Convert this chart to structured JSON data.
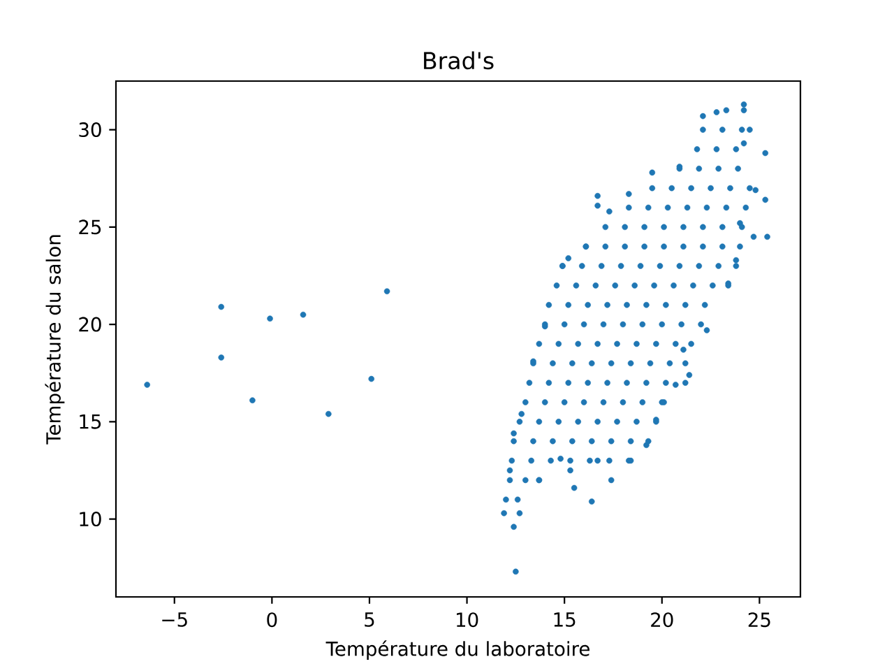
{
  "chart_data": {
    "type": "scatter",
    "title": "Brad's",
    "xlabel": "Température du laboratoire",
    "ylabel": "Température du salon",
    "color": "#1f77b4",
    "marker": "circle",
    "xlim": [
      -8.0,
      27.1
    ],
    "ylim": [
      6.0,
      32.5
    ],
    "xticks": [
      {
        "value": -5,
        "label": "−5"
      },
      0,
      5,
      10,
      15,
      20,
      25
    ],
    "yticks": [
      10,
      15,
      20,
      25,
      30
    ],
    "x": [
      -6.4,
      -2.6,
      -2.6,
      -1.0,
      -0.1,
      1.6,
      2.9,
      5.1,
      5.9,
      12.5,
      12.4,
      11.9,
      12.2,
      12.4,
      12.8,
      13.4,
      14.0,
      14.9,
      15.2,
      16.1,
      16.7,
      16.7,
      17.3,
      18.3,
      19.5,
      20.9,
      22.1,
      22.8,
      24.2,
      24.5,
      24.2,
      25.3,
      24.8,
      25.3,
      25.4,
      24.7,
      24.0,
      23.8,
      23.4,
      22.3,
      21.1,
      21.4,
      20.7,
      20.1,
      19.7,
      19.2,
      18.4,
      17.4,
      16.7,
      16.4,
      15.5,
      15.3,
      14.8,
      13.7,
      12.7,
      12.0,
      12.6,
      12.2,
      13.0,
      13.7,
      12.3,
      13.3,
      14.3,
      15.3,
      16.3,
      17.3,
      18.3,
      12.4,
      13.4,
      14.4,
      15.4,
      16.4,
      17.4,
      18.4,
      19.3,
      12.7,
      13.7,
      14.7,
      15.7,
      16.7,
      17.7,
      18.7,
      19.7,
      13.0,
      14.0,
      15.0,
      16.0,
      17.0,
      18.0,
      19.0,
      20.0,
      13.2,
      14.2,
      15.2,
      16.2,
      17.2,
      18.2,
      19.2,
      20.2,
      21.2,
      13.4,
      14.4,
      15.4,
      16.4,
      17.4,
      18.4,
      19.4,
      20.4,
      21.2,
      13.7,
      14.7,
      15.7,
      16.7,
      17.7,
      18.7,
      19.7,
      20.7,
      21.5,
      14.0,
      15.0,
      16.0,
      17.0,
      18.0,
      19.0,
      20.0,
      21.0,
      22.0,
      14.2,
      15.2,
      16.2,
      17.2,
      18.2,
      19.2,
      20.2,
      21.2,
      22.2,
      14.6,
      15.6,
      16.6,
      17.6,
      18.6,
      19.6,
      20.6,
      21.6,
      22.6,
      23.4,
      14.9,
      15.9,
      16.9,
      17.9,
      18.9,
      19.9,
      20.9,
      21.9,
      22.9,
      23.8,
      16.1,
      17.1,
      18.1,
      19.1,
      20.1,
      21.1,
      22.1,
      23.1,
      24.0,
      17.1,
      18.1,
      19.1,
      20.1,
      21.1,
      22.1,
      23.1,
      24.1,
      18.3,
      19.3,
      20.3,
      21.3,
      22.3,
      23.3,
      24.3,
      19.5,
      20.5,
      21.5,
      22.5,
      23.5,
      24.5,
      20.9,
      21.9,
      22.9,
      23.9,
      21.8,
      22.8,
      23.8,
      22.1,
      23.1,
      24.1,
      23.3,
      24.2
    ],
    "values": [
      16.9,
      20.9,
      18.3,
      16.1,
      20.3,
      20.5,
      15.4,
      17.2,
      21.7,
      7.3,
      9.6,
      10.3,
      12.5,
      14.4,
      15.4,
      18.1,
      19.9,
      23.0,
      23.4,
      24.0,
      26.6,
      26.1,
      25.8,
      26.7,
      27.8,
      28.1,
      30.7,
      30.9,
      31.3,
      30.0,
      29.3,
      28.8,
      26.9,
      26.4,
      24.5,
      24.5,
      25.2,
      23.3,
      22.1,
      19.7,
      18.7,
      17.4,
      16.9,
      16.0,
      15.1,
      13.8,
      13.0,
      12.0,
      13.0,
      10.9,
      11.6,
      12.5,
      13.1,
      12.0,
      10.3,
      11,
      11,
      12,
      12,
      12,
      13,
      13,
      13,
      13,
      13,
      13,
      13,
      14,
      14,
      14,
      14,
      14,
      14,
      14,
      14,
      15,
      15,
      15,
      15,
      15,
      15,
      15,
      15,
      16,
      16,
      16,
      16,
      16,
      16,
      16,
      16,
      17,
      17,
      17,
      17,
      17,
      17,
      17,
      17,
      17,
      18,
      18,
      18,
      18,
      18,
      18,
      18,
      18,
      18,
      19,
      19,
      19,
      19,
      19,
      19,
      19,
      19,
      19,
      20,
      20,
      20,
      20,
      20,
      20,
      20,
      20,
      20,
      21,
      21,
      21,
      21,
      21,
      21,
      21,
      21,
      21,
      22,
      22,
      22,
      22,
      22,
      22,
      22,
      22,
      22,
      22,
      23,
      23,
      23,
      23,
      23,
      23,
      23,
      23,
      23,
      23,
      24,
      24,
      24,
      24,
      24,
      24,
      24,
      24,
      24,
      25,
      25,
      25,
      25,
      25,
      25,
      25,
      25,
      26,
      26,
      26,
      26,
      26,
      26,
      26,
      27,
      27,
      27,
      27,
      27,
      27,
      28,
      28,
      28,
      28,
      29,
      29,
      29,
      30,
      30,
      30,
      31,
      31
    ]
  }
}
